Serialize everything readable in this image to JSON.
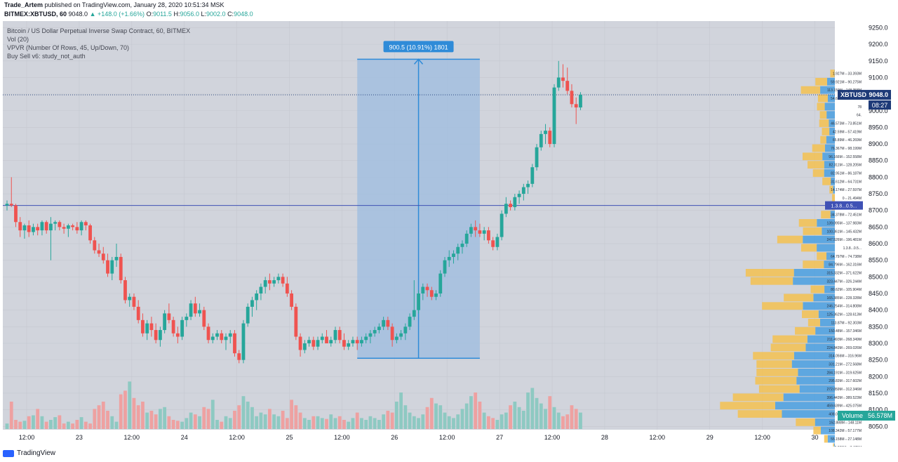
{
  "header": {
    "author": "Trade_Artem",
    "published_text": "published on TradingView.com, January 28, 2020 10:51:34 MSK",
    "symbol_line": {
      "symbol": "BITMEX:XBTUSD, 60",
      "last": "9048.0",
      "change": "▲ +148.0 (+1.66%)",
      "o_label": "O:",
      "o": "9011.5",
      "h_label": "H:",
      "h": "9056.0",
      "l_label": "L:",
      "l": "9002.0",
      "c_label": "C:",
      "c": "9048.0"
    }
  },
  "legend": {
    "line1": "Bitcoin / US Dollar Perpetual Inverse Swap Contract, 60, BITMEX",
    "line2": "Vol (20)",
    "line3": "VPVR (Number Of Rows, 45, Up/Down, 70)",
    "line4": "Buy Sell v6: study_not_auth"
  },
  "colors": {
    "up": "#26a69a",
    "down": "#ef5350",
    "vol_up": "#8ec9c2",
    "vol_down": "#eea1a1",
    "vpvr_up": "#4a9fe0",
    "vpvr_down": "#f5c150",
    "chart_bg": "#d1d4dc",
    "measure_fill": "#9cbce0",
    "measure_line": "#2f8bd8",
    "hline": "#3f51b5",
    "price_tag": "#1e3a78"
  },
  "chart_data": {
    "type": "candlestick",
    "y_axis": {
      "min": 8040,
      "max": 9270,
      "ticks": [
        "9250.0",
        "9200.0",
        "9150.0",
        "9100.0",
        "9050.0",
        "9000.0",
        "8950.0",
        "8900.0",
        "8850.0",
        "8800.0",
        "8750.0",
        "8700.0",
        "8650.0",
        "8600.0",
        "8550.0",
        "8500.0",
        "8450.0",
        "8400.0",
        "8350.0",
        "8300.0",
        "8250.0",
        "8200.0",
        "8150.0",
        "8100.0",
        "8050.0"
      ]
    },
    "x_axis": {
      "labels": [
        "12:00",
        "23",
        "12:00",
        "24",
        "12:00",
        "25",
        "12:00",
        "26",
        "12:00",
        "27",
        "12:00",
        "28",
        "12:00",
        "29",
        "12:00",
        "30"
      ],
      "bars_per_label": 12
    },
    "candles": [
      [
        8715,
        8730,
        8700,
        8720
      ],
      [
        8720,
        8800,
        8710,
        8715
      ],
      [
        8715,
        8720,
        8650,
        8665
      ],
      [
        8665,
        8680,
        8620,
        8640
      ],
      [
        8640,
        8660,
        8615,
        8655
      ],
      [
        8655,
        8670,
        8620,
        8635
      ],
      [
        8635,
        8660,
        8625,
        8650
      ],
      [
        8650,
        8660,
        8625,
        8640
      ],
      [
        8640,
        8670,
        8625,
        8665
      ],
      [
        8665,
        8670,
        8630,
        8640
      ],
      [
        8640,
        8680,
        8550,
        8660
      ],
      [
        8660,
        8670,
        8640,
        8665
      ],
      [
        8665,
        8670,
        8640,
        8650
      ],
      [
        8650,
        8660,
        8630,
        8645
      ],
      [
        8645,
        8660,
        8620,
        8655
      ],
      [
        8655,
        8660,
        8640,
        8650
      ],
      [
        8650,
        8665,
        8630,
        8640
      ],
      [
        8640,
        8670,
        8625,
        8665
      ],
      [
        8665,
        8670,
        8640,
        8655
      ],
      [
        8655,
        8660,
        8600,
        8610
      ],
      [
        8610,
        8620,
        8570,
        8580
      ],
      [
        8580,
        8600,
        8560,
        8570
      ],
      [
        8570,
        8590,
        8540,
        8550
      ],
      [
        8550,
        8570,
        8500,
        8510
      ],
      [
        8510,
        8560,
        8490,
        8550
      ],
      [
        8550,
        8600,
        8530,
        8560
      ],
      [
        8560,
        8570,
        8480,
        8490
      ],
      [
        8490,
        8500,
        8420,
        8430
      ],
      [
        8430,
        8450,
        8410,
        8440
      ],
      [
        8440,
        8450,
        8400,
        8410
      ],
      [
        8410,
        8430,
        8360,
        8370
      ],
      [
        8370,
        8390,
        8320,
        8330
      ],
      [
        8330,
        8370,
        8310,
        8360
      ],
      [
        8360,
        8380,
        8320,
        8340
      ],
      [
        8340,
        8360,
        8300,
        8310
      ],
      [
        8310,
        8350,
        8290,
        8340
      ],
      [
        8340,
        8400,
        8330,
        8390
      ],
      [
        8390,
        8420,
        8360,
        8370
      ],
      [
        8370,
        8380,
        8320,
        8330
      ],
      [
        8330,
        8350,
        8300,
        8320
      ],
      [
        8320,
        8380,
        8310,
        8370
      ],
      [
        8370,
        8390,
        8350,
        8380
      ],
      [
        8380,
        8430,
        8370,
        8420
      ],
      [
        8420,
        8440,
        8380,
        8390
      ],
      [
        8390,
        8420,
        8380,
        8400
      ],
      [
        8400,
        8410,
        8340,
        8350
      ],
      [
        8350,
        8360,
        8300,
        8310
      ],
      [
        8310,
        8330,
        8300,
        8320
      ],
      [
        8320,
        8340,
        8310,
        8330
      ],
      [
        8330,
        8340,
        8300,
        8310
      ],
      [
        8310,
        8330,
        8280,
        8320
      ],
      [
        8320,
        8340,
        8300,
        8330
      ],
      [
        8330,
        8340,
        8260,
        8270
      ],
      [
        8270,
        8280,
        8240,
        8250
      ],
      [
        8250,
        8370,
        8240,
        8360
      ],
      [
        8360,
        8420,
        8350,
        8410
      ],
      [
        8410,
        8440,
        8380,
        8430
      ],
      [
        8430,
        8460,
        8400,
        8450
      ],
      [
        8450,
        8480,
        8430,
        8470
      ],
      [
        8470,
        8500,
        8450,
        8490
      ],
      [
        8490,
        8510,
        8460,
        8480
      ],
      [
        8480,
        8500,
        8470,
        8490
      ],
      [
        8490,
        8510,
        8480,
        8500
      ],
      [
        8500,
        8510,
        8470,
        8480
      ],
      [
        8480,
        8500,
        8440,
        8450
      ],
      [
        8450,
        8460,
        8400,
        8410
      ],
      [
        8410,
        8420,
        8310,
        8320
      ],
      [
        8320,
        8330,
        8260,
        8280
      ],
      [
        8280,
        8310,
        8270,
        8300
      ],
      [
        8300,
        8320,
        8290,
        8310
      ],
      [
        8310,
        8320,
        8280,
        8290
      ],
      [
        8290,
        8320,
        8280,
        8310
      ],
      [
        8310,
        8330,
        8300,
        8320
      ],
      [
        8320,
        8340,
        8310,
        8300
      ],
      [
        8300,
        8320,
        8290,
        8310
      ],
      [
        8310,
        8350,
        8300,
        8340
      ],
      [
        8340,
        8350,
        8300,
        8310
      ],
      [
        8310,
        8330,
        8280,
        8290
      ],
      [
        8290,
        8310,
        8280,
        8300
      ],
      [
        8300,
        8320,
        8290,
        8310
      ],
      [
        8310,
        8320,
        8280,
        8300
      ],
      [
        8300,
        8320,
        8290,
        8310
      ],
      [
        8310,
        8330,
        8300,
        8320
      ],
      [
        8320,
        8340,
        8300,
        8330
      ],
      [
        8330,
        8350,
        8320,
        8340
      ],
      [
        8340,
        8360,
        8330,
        8350
      ],
      [
        8350,
        8380,
        8340,
        8370
      ],
      [
        8370,
        8380,
        8340,
        8350
      ],
      [
        8350,
        8360,
        8290,
        8310
      ],
      [
        8310,
        8330,
        8300,
        8320
      ],
      [
        8320,
        8340,
        8310,
        8330
      ],
      [
        8330,
        8360,
        8310,
        8350
      ],
      [
        8350,
        8390,
        8340,
        8380
      ],
      [
        8380,
        8490,
        8370,
        8400
      ],
      [
        8400,
        8460,
        8390,
        8450
      ],
      [
        8450,
        8480,
        8430,
        8470
      ],
      [
        8470,
        8480,
        8440,
        8460
      ],
      [
        8460,
        8470,
        8430,
        8440
      ],
      [
        8440,
        8460,
        8430,
        8450
      ],
      [
        8450,
        8520,
        8440,
        8510
      ],
      [
        8510,
        8560,
        8500,
        8550
      ],
      [
        8550,
        8580,
        8530,
        8560
      ],
      [
        8560,
        8580,
        8540,
        8570
      ],
      [
        8570,
        8600,
        8550,
        8590
      ],
      [
        8590,
        8610,
        8570,
        8600
      ],
      [
        8600,
        8640,
        8590,
        8630
      ],
      [
        8630,
        8660,
        8620,
        8650
      ],
      [
        8650,
        8670,
        8620,
        8640
      ],
      [
        8640,
        8660,
        8620,
        8630
      ],
      [
        8630,
        8650,
        8610,
        8640
      ],
      [
        8640,
        8650,
        8600,
        8610
      ],
      [
        8610,
        8620,
        8580,
        8590
      ],
      [
        8590,
        8630,
        8580,
        8620
      ],
      [
        8620,
        8700,
        8610,
        8690
      ],
      [
        8690,
        8740,
        8680,
        8720
      ],
      [
        8720,
        8730,
        8700,
        8710
      ],
      [
        8710,
        8750,
        8700,
        8740
      ],
      [
        8740,
        8760,
        8720,
        8750
      ],
      [
        8750,
        8780,
        8730,
        8770
      ],
      [
        8770,
        8790,
        8750,
        8780
      ],
      [
        8780,
        8840,
        8770,
        8830
      ],
      [
        8830,
        8900,
        8820,
        8890
      ],
      [
        8890,
        8940,
        8880,
        8930
      ],
      [
        8930,
        8960,
        8900,
        8940
      ],
      [
        8940,
        8950,
        8890,
        8900
      ],
      [
        8900,
        9080,
        8890,
        9070
      ],
      [
        9070,
        9150,
        9060,
        9100
      ],
      [
        9100,
        9140,
        9070,
        9090
      ],
      [
        9090,
        9130,
        9050,
        9060
      ],
      [
        9060,
        9080,
        9010,
        9020
      ],
      [
        9020,
        9040,
        8960,
        9010
      ],
      [
        9010,
        9056,
        9002,
        9048
      ]
    ],
    "volume": [
      6,
      30,
      10,
      8,
      9,
      14,
      15,
      22,
      14,
      8,
      10,
      13,
      15,
      6,
      8,
      6,
      10,
      13,
      8,
      6,
      22,
      26,
      30,
      20,
      14,
      8,
      38,
      42,
      52,
      34,
      26,
      30,
      18,
      20,
      16,
      22,
      24,
      14,
      10,
      9,
      8,
      12,
      18,
      16,
      14,
      24,
      22,
      32,
      10,
      8,
      14,
      12,
      20,
      26,
      36,
      30,
      24,
      14,
      18,
      16,
      22,
      16,
      14,
      20,
      12,
      32,
      26,
      18,
      12,
      10,
      14,
      14,
      12,
      11,
      16,
      12,
      14,
      10,
      8,
      12,
      18,
      12,
      10,
      14,
      12,
      10,
      16,
      20,
      18,
      30,
      40,
      26,
      18,
      14,
      12,
      16,
      24,
      34,
      28,
      26,
      18,
      14,
      12,
      16,
      22,
      28,
      36,
      40,
      30,
      18,
      14,
      12,
      10,
      16,
      18,
      26,
      30,
      24,
      20,
      40,
      45,
      34,
      28,
      22,
      36,
      24,
      18,
      14,
      16,
      26,
      22,
      18,
      34,
      22,
      12
    ],
    "vol_axis_max": 100,
    "volume_label": "Volume",
    "volume_value": "56.578M",
    "vpvr": [
      {
        "price": 9112.5,
        "up": 1.927,
        "down": 33.393,
        "label": "1.927M⇔33.393M"
      },
      {
        "price": 9087.5,
        "up": 59.921,
        "down": 90.275,
        "label": "59.921M⇔90.275M"
      },
      {
        "price": 9062.5,
        "up": 113.159,
        "down": 148.358,
        "label": "113.159M⇔148.358M"
      },
      {
        "price": 9037.5,
        "up": 54.661,
        "down": 75.775,
        "label": "54.661M⇔75.775M"
      },
      {
        "price": 9012.5,
        "up": 78,
        "down": 60,
        "label": "78"
      },
      {
        "price": 8987.5,
        "up": 64,
        "down": 52,
        "label": "64."
      },
      {
        "price": 8962.5,
        "up": 46.573,
        "down": 73.851,
        "label": "46.573M⇔73.851M"
      },
      {
        "price": 8937.5,
        "up": 42.59,
        "down": 57.419,
        "label": "42.59M⇔57.419M"
      },
      {
        "price": 8912.5,
        "up": 65.89,
        "down": 46.269,
        "label": "65.89M⇔46.269M"
      },
      {
        "price": 8887.5,
        "up": 76.367,
        "down": 98.199,
        "label": "76.367M⇔98.199M"
      },
      {
        "price": 8862.5,
        "up": 96.166,
        "down": 152.558,
        "label": "96.166M⇔152.558M"
      },
      {
        "price": 8837.5,
        "up": 82.311,
        "down": 128.205,
        "label": "82.311M⇔128.205M"
      },
      {
        "price": 8812.5,
        "up": 82.951,
        "down": 86.187,
        "label": "82.951M⇔86.187M"
      },
      {
        "price": 8787.5,
        "up": 31.612,
        "down": 64.731,
        "label": "31.612M⇔64.731M"
      },
      {
        "price": 8762.5,
        "up": 14.174,
        "down": 27.597,
        "label": "14.174M⇔27.597M"
      },
      {
        "price": 8737.5,
        "up": 0,
        "down": 21.494,
        "label": "0⇔21.494M"
      },
      {
        "price": 8712.5,
        "up": 0,
        "down": 21.494,
        "label": "0⇔21.494M"
      },
      {
        "price": 8687.5,
        "up": 34.378,
        "down": 72.451,
        "label": "34.378M⇔72.451M"
      },
      {
        "price": 8662.5,
        "up": 139.095,
        "down": 137.983,
        "label": "139.095M⇔137.983M"
      },
      {
        "price": 8637.5,
        "up": 100.361,
        "down": 145.432,
        "label": "100.361M⇔145.432M"
      },
      {
        "price": 8612.5,
        "up": 247.526,
        "down": 196.481,
        "label": "247.526M⇔196.481M"
      },
      {
        "price": 8587.5,
        "up": 140,
        "down": 120,
        "label": "1.3.8...0.5..."
      },
      {
        "price": 8562.5,
        "up": 64.797,
        "down": 74.738,
        "label": "64.797M⇔74.738M"
      },
      {
        "price": 8537.5,
        "up": 84.796,
        "down": 162.316,
        "label": "84.796M⇔162.316M"
      },
      {
        "price": 8512.5,
        "up": 315.332,
        "down": 371.622,
        "label": "315.332M⇔371.622M"
      },
      {
        "price": 8487.5,
        "up": 323.447,
        "down": 326.244,
        "label": "323.447M⇔326.244M"
      },
      {
        "price": 8462.5,
        "up": 80.62,
        "down": 105.904,
        "label": "80.62M⇔105.904M"
      },
      {
        "price": 8437.5,
        "up": 165.385,
        "down": 228.328,
        "label": "165.385M⇔228.328M"
      },
      {
        "price": 8412.5,
        "up": 246.254,
        "down": 314.808,
        "label": "246.254M⇔314.808M"
      },
      {
        "price": 8387.5,
        "up": 125.362,
        "down": 128.613,
        "label": "125.362M⇔128.613M"
      },
      {
        "price": 8362.5,
        "up": 113.87,
        "down": 92.303,
        "label": "113.87M⇔92.303M"
      },
      {
        "price": 8337.5,
        "up": 150.48,
        "down": 157.346,
        "label": "150.48M⇔157.346M"
      },
      {
        "price": 8312.5,
        "up": 211.493,
        "down": 268.349,
        "label": "211.493M⇔268.349M"
      },
      {
        "price": 8287.5,
        "up": 224.843,
        "down": 269.026,
        "label": "224.843M⇔269.026M"
      },
      {
        "price": 8262.5,
        "up": 314.056,
        "down": 316.96,
        "label": "314.056M⇔316.96M"
      },
      {
        "price": 8237.5,
        "up": 331.21,
        "down": 272.568,
        "label": "331.21M⇔272.568M"
      },
      {
        "price": 8212.5,
        "up": 284.191,
        "down": 319.625,
        "label": "284.191M⇔319.625M"
      },
      {
        "price": 8187.5,
        "up": 295.83,
        "down": 317.602,
        "label": "295.83M⇔317.602M"
      },
      {
        "price": 8162.5,
        "up": 272.059,
        "down": 312.346,
        "label": "272.059M⇔312.346M"
      },
      {
        "price": 8137.5,
        "up": 396.443,
        "down": 389.523,
        "label": "396.443M⇔389.523M"
      },
      {
        "price": 8112.5,
        "up": 459.639,
        "down": 425.075,
        "label": "459.639M⇔425.075M"
      },
      {
        "price": 8087.5,
        "up": 408.09,
        "down": 339.813,
        "label": "408.09M⇔339.813M"
      },
      {
        "price": 8062.5,
        "up": 152.888,
        "down": 148.11,
        "label": "152.888M⇔148.11M"
      },
      {
        "price": 8037.5,
        "up": 108.342,
        "down": 57.177,
        "label": "108.342M⇔57.177M"
      },
      {
        "price": 8012.5,
        "up": 55.158,
        "down": 27.148,
        "label": "55.158M⇔27.148M"
      },
      {
        "price": 7987.5,
        "up": 6.865,
        "down": 7.475,
        "label": "6.865M⇔7.475M"
      }
    ],
    "measure": {
      "label": "900.5 (10.91%) 1801",
      "from_price": 8255,
      "to_price": 9155,
      "from_bar": 80,
      "to_bar": 108
    },
    "hline_price": 8715,
    "hline_label": "1.3.8...0.5...",
    "last_price_tag": {
      "symbol": "XBTUSD",
      "price": "9048.0",
      "countdown": "08:27"
    }
  },
  "footer": {
    "brand": "TradingView"
  }
}
